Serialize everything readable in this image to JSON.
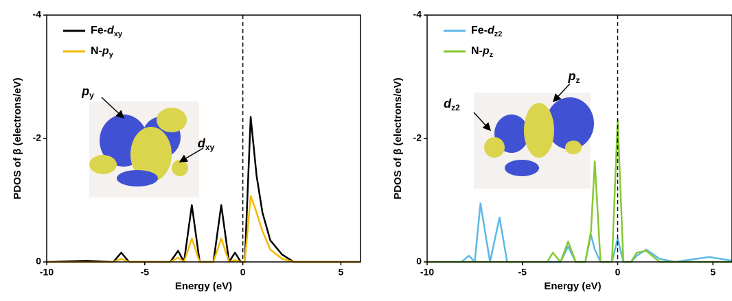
{
  "chart_data": [
    {
      "type": "line",
      "xlabel": "Energy (eV)",
      "ylabel": "PDOS of β (electrons/eV)",
      "xlim": [
        -10,
        6
      ],
      "xticks": [
        -10,
        -5,
        0,
        5
      ],
      "ylim": [
        0,
        -4
      ],
      "yticks": [
        -4,
        -2,
        0
      ],
      "vline": 0,
      "x": [
        -10,
        -8,
        -6.6,
        -6.2,
        -5.8,
        -3.7,
        -3.3,
        -3.0,
        -2.6,
        -2.2,
        -1.8,
        -1.5,
        -1.1,
        -0.7,
        -0.4,
        -0.1,
        0.1,
        0.4,
        0.7,
        1.0,
        1.4,
        2.0,
        2.6,
        6
      ],
      "series": [
        {
          "name": [
            "Fe-",
            "d",
            "xy"
          ],
          "color": "#000000",
          "values": [
            0,
            -0.02,
            0,
            -0.15,
            0,
            0,
            -0.18,
            0,
            -0.92,
            0,
            0,
            0,
            -0.92,
            0,
            -0.15,
            0,
            0,
            -2.35,
            -1.4,
            -0.8,
            -0.35,
            -0.12,
            0,
            0
          ]
        },
        {
          "name": [
            "N-",
            "p",
            "y"
          ],
          "color": "#f5b800",
          "values": [
            0,
            0,
            0,
            -0.05,
            0,
            0,
            -0.07,
            0,
            -0.38,
            0,
            0,
            0,
            -0.38,
            0,
            -0.03,
            0,
            0,
            -1.07,
            -0.8,
            -0.5,
            -0.2,
            -0.05,
            0,
            0
          ]
        }
      ],
      "annotations": [
        {
          "text": "p",
          "sub": "y"
        },
        {
          "text": "d",
          "sub": "xy"
        }
      ]
    },
    {
      "type": "line",
      "xlabel": "Energy (eV)",
      "ylabel": "PDOS of β (electrons/eV)",
      "xlim": [
        -10,
        6
      ],
      "xticks": [
        -10,
        -5,
        0,
        5
      ],
      "ylim": [
        0,
        -4
      ],
      "yticks": [
        -4,
        -2,
        0
      ],
      "vline": 0,
      "x": [
        -10,
        -8.2,
        -7.8,
        -7.5,
        -7.2,
        -6.7,
        -6.2,
        -5.8,
        -3.7,
        -3.4,
        -3.0,
        -2.6,
        -2.2,
        -1.7,
        -1.4,
        -1.2,
        -0.9,
        -0.3,
        0,
        0.3,
        0.7,
        1.0,
        1.5,
        2.2,
        3,
        4.8,
        6
      ],
      "series": [
        {
          "name": [
            "Fe-",
            "d",
            "z2"
          ],
          "color": "#5bb8e8",
          "values": [
            0,
            0,
            -0.1,
            0,
            -0.95,
            0,
            -0.72,
            0,
            0,
            0,
            0,
            -0.25,
            0,
            0,
            -0.44,
            -0.2,
            0,
            0,
            -0.38,
            0,
            0,
            -0.1,
            -0.2,
            -0.05,
            0,
            -0.08,
            -0.02
          ]
        },
        {
          "name": [
            "N-",
            "p",
            "z"
          ],
          "color": "#86c832",
          "values": [
            0,
            0,
            0,
            0,
            0,
            0,
            0,
            0,
            0,
            -0.15,
            0,
            -0.33,
            0,
            0,
            -0.5,
            -1.63,
            0,
            0,
            -2.3,
            0,
            0,
            -0.15,
            -0.18,
            0,
            0,
            0,
            0
          ]
        }
      ],
      "annotations": [
        {
          "text": "d",
          "sub": "z2"
        },
        {
          "text": "p",
          "sub": "z"
        }
      ]
    }
  ]
}
